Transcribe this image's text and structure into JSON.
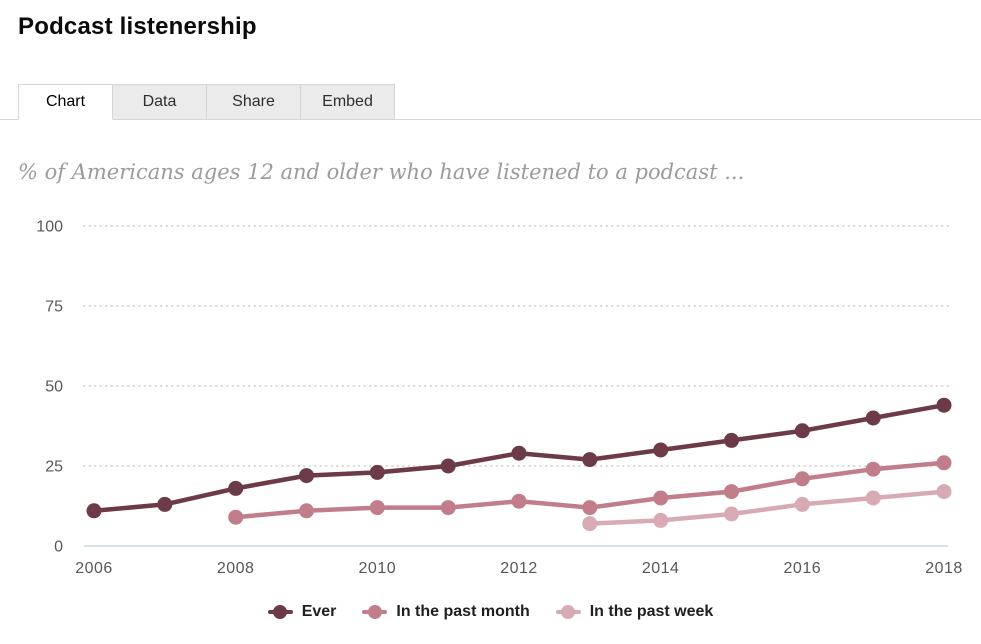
{
  "header": {
    "title": "Podcast listenership"
  },
  "tabs": [
    {
      "label": "Chart",
      "active": true
    },
    {
      "label": "Data",
      "active": false
    },
    {
      "label": "Share",
      "active": false
    },
    {
      "label": "Embed",
      "active": false
    }
  ],
  "chart_data": {
    "type": "line",
    "subtitle": "% of Americans ages 12 and older who have listened to a podcast ...",
    "x": [
      2006,
      2007,
      2008,
      2009,
      2010,
      2011,
      2012,
      2013,
      2014,
      2015,
      2016,
      2017,
      2018
    ],
    "series": [
      {
        "name": "Ever",
        "color": "#6d3a47",
        "values": [
          11,
          13,
          18,
          22,
          23,
          25,
          29,
          27,
          30,
          33,
          36,
          40,
          44
        ]
      },
      {
        "name": "In the past month",
        "color": "#c17e8a",
        "values": [
          null,
          null,
          9,
          11,
          12,
          12,
          14,
          12,
          15,
          17,
          21,
          24,
          26
        ]
      },
      {
        "name": "In the past week",
        "color": "#d8abb4",
        "values": [
          null,
          null,
          null,
          null,
          null,
          null,
          null,
          7,
          8,
          10,
          13,
          15,
          17
        ]
      }
    ],
    "yticks": [
      0,
      25,
      50,
      75,
      100
    ],
    "xticks": [
      2006,
      2008,
      2010,
      2012,
      2014,
      2016,
      2018
    ],
    "ylim": [
      0,
      100
    ],
    "grid": "horizontal-dotted",
    "legend_position": "bottom"
  },
  "colors": {
    "series_dark": "#6d3a47",
    "series_medium": "#c17e8a",
    "series_light": "#d8abb4",
    "axis_baseline": "#c8d8e8",
    "gridline": "#cfcfcf",
    "tick_label": "#57575a",
    "subtitle_text": "#9b9b9b",
    "legend_text": "#1f1f1f"
  }
}
